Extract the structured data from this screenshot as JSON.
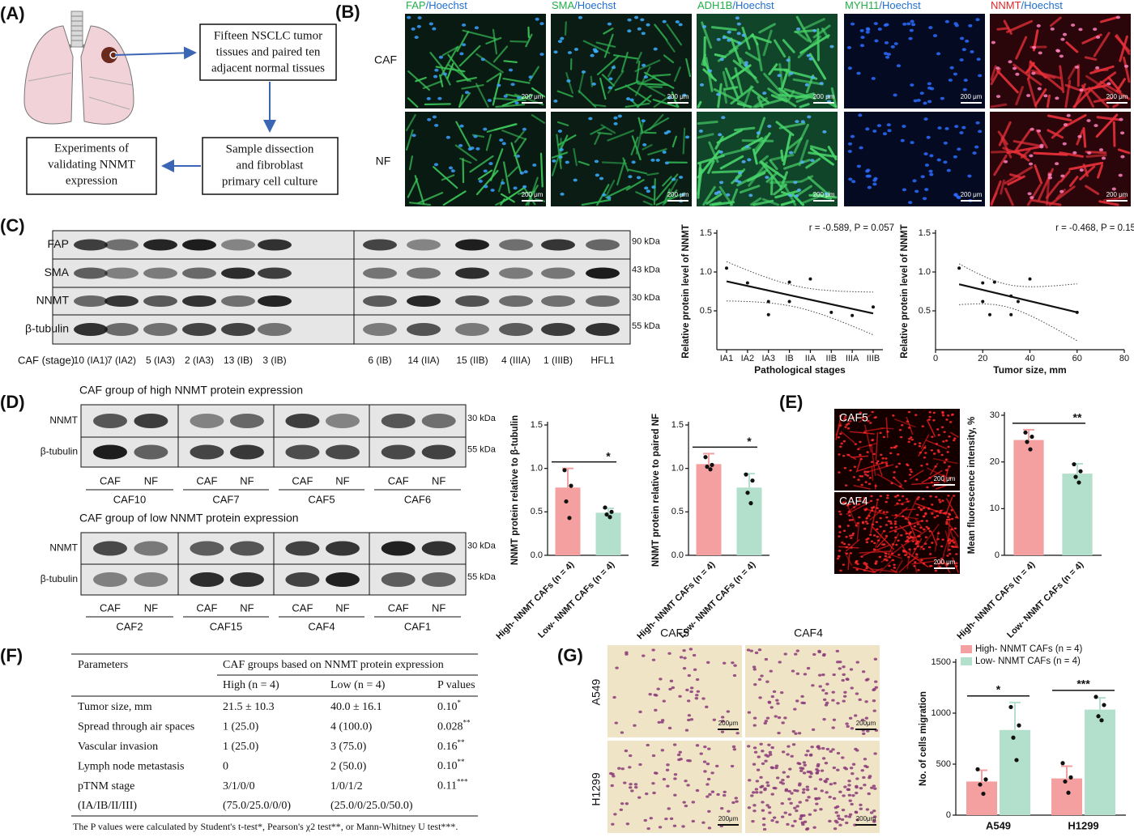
{
  "panel_labels": [
    "(A)",
    "(B)",
    "(C)",
    "(D)",
    "(E)",
    "(F)",
    "(G)"
  ],
  "panel_a": {
    "boxes": [
      [
        "Fifteen NSCLC tumor",
        "tissues and paired ten",
        "adjacent normal tissues"
      ],
      [
        "Sample dissection",
        "and fibroblast",
        "primary cell culture"
      ],
      [
        "Experiments of",
        "validating NNMT",
        "expression"
      ]
    ]
  },
  "panel_b": {
    "columns": [
      {
        "marker": "FAP",
        "counterstain": "/Hoechst",
        "marker_color": "#22b04a",
        "counterstain_color": "#1f6fd0"
      },
      {
        "marker": "SMA",
        "counterstain": "/Hoechst",
        "marker_color": "#22b04a",
        "counterstain_color": "#1f6fd0"
      },
      {
        "marker": "ADH1B",
        "counterstain": "/Hoechst",
        "marker_color": "#22b04a",
        "counterstain_color": "#1f6fd0"
      },
      {
        "marker": "MYH11",
        "counterstain": "/Hoechst",
        "marker_color": "#22b04a",
        "counterstain_color": "#1f6fd0"
      },
      {
        "marker": "NNMT",
        "counterstain": "/Hoechst",
        "marker_color": "#e0262a",
        "counterstain_color": "#1f6fd0"
      }
    ],
    "rows": [
      "CAF",
      "NF"
    ],
    "scale_bar": "200 μm"
  },
  "panel_c": {
    "rows": [
      "FAP",
      "SMA",
      "NNMT",
      "β-tubulin"
    ],
    "kda": [
      "90 kDa",
      "43 kDa",
      "30 kDa",
      "55 kDa"
    ],
    "lane_title": "CAF (stage)",
    "lanes": [
      "10 (IA1)",
      "7 (IA2)",
      "5 (IA3)",
      "2 (IA3)",
      "13 (IB)",
      "3 (IB)",
      "6 (IB)",
      "14 (IIA)",
      "15 (IIB)",
      "4 (IIIA)",
      "1 (IIIB)",
      "HFL1"
    ]
  },
  "panel_d": {
    "groups": [
      {
        "title": "CAF group of high NNMT protein expression",
        "samples": [
          "CAF10",
          "CAF7",
          "CAF5",
          "CAF6"
        ]
      },
      {
        "title": "CAF group of low NNMT protein expression",
        "samples": [
          "CAF2",
          "CAF15",
          "CAF4",
          "CAF1"
        ]
      }
    ],
    "rows": [
      "NNMT",
      "β-tubulin"
    ],
    "kda": [
      "30 kDa",
      "55 kDa"
    ],
    "lanes": [
      "CAF",
      "NF"
    ]
  },
  "panel_e": {
    "images": [
      "CAF5",
      "CAF4"
    ],
    "scale_bar": "200 μm"
  },
  "panel_g": {
    "columns": [
      "CAF5",
      "CAF4"
    ],
    "rows": [
      "A549",
      "H1299"
    ],
    "scale_bar": "200μm"
  },
  "table": {
    "header": [
      "Parameters",
      "CAF groups based on NNMT protein expression"
    ],
    "subheader": [
      "High (n = 4)",
      "Low (n = 4)",
      "P values"
    ],
    "rows": [
      [
        "Tumor size, mm",
        "21.5 ± 10.3",
        "40.0 ± 16.1",
        {
          "text": "0.10",
          "note": "*"
        }
      ],
      [
        "Spread through air spaces",
        "1 (25.0)",
        "4 (100.0)",
        {
          "text": "0.028",
          "note": "**"
        }
      ],
      [
        "Vascular invasion",
        "1 (25.0)",
        "3 (75.0)",
        {
          "text": "0.16",
          "note": "**"
        }
      ],
      [
        "Lymph node metastasis",
        "0",
        "2 (50.0)",
        {
          "text": "0.10",
          "note": "**"
        }
      ],
      [
        "pTNM stage",
        "3/1/0/0",
        "1/0/1/2",
        {
          "text": "0.11",
          "note": "***"
        }
      ],
      [
        "(IA/IB/II/III)",
        "(75.0/25.0/0/0)",
        "(25.0/0/25.0/50.0)",
        null
      ]
    ],
    "footnote": "The P values were calculated by Student's t-test*, Pearson's χ2 test**, or Mann-Whitney U test***."
  },
  "chart_data": [
    {
      "type": "scatter",
      "annotation": "r = -0.589, P = 0.057",
      "ylabel": "Relative protein level of NNMT",
      "xlabel": "Pathological stages",
      "categories": [
        "IA1",
        "IA2",
        "IA3",
        "IB",
        "IIA",
        "IIB",
        "IIIA",
        "IIIB"
      ],
      "x": [
        "IA1",
        "IA2",
        "IA3",
        "IA3",
        "IB",
        "IB",
        "IIA",
        "IIB",
        "IIIA",
        "IIIB"
      ],
      "values": [
        1.05,
        0.86,
        0.62,
        0.45,
        0.87,
        0.62,
        0.91,
        0.48,
        0.44,
        0.55
      ],
      "ylim": [
        0,
        1.5
      ],
      "yticks": [
        0.5,
        {
          "value": 1,
          "label": "1.0"
        },
        1.5
      ],
      "fit": true
    },
    {
      "type": "scatter",
      "annotation": "r = -0.468, P = 0.15",
      "ylabel": "Relative protein level of NNMT",
      "xlabel": "Tumor size, mm",
      "x": [
        10,
        20,
        25,
        20,
        23,
        32,
        32,
        35,
        40,
        60
      ],
      "values": [
        1.05,
        0.86,
        0.87,
        0.62,
        0.45,
        0.69,
        0.45,
        0.62,
        0.91,
        0.48
      ],
      "xlim": [
        0,
        80
      ],
      "xticks": [
        0,
        20,
        40,
        60,
        80
      ],
      "ylim": [
        0,
        1.5
      ],
      "yticks": [
        0.5,
        {
          "value": 1,
          "label": "1.0"
        },
        1.5
      ],
      "fit": true
    },
    {
      "type": "bar",
      "ylabel": "NNMT protein relative to β-tubulin",
      "categories": [
        "High- NNMT CAFs (n = 4)",
        "Low- NNMT CAFs (n = 4)"
      ],
      "colors": [
        "#f4a0a0",
        "#b3e0cc"
      ],
      "values": [
        0.78,
        0.49
      ],
      "errors": [
        0.22,
        0.05
      ],
      "points": [
        [
          0.98,
          0.8,
          0.62,
          0.43
        ],
        [
          0.55,
          0.5,
          0.47,
          0.44
        ]
      ],
      "significance": "*",
      "ylim": [
        0,
        1.5
      ],
      "yticks": [
        {
          "value": 0,
          "label": "0.0"
        },
        0.5,
        {
          "value": 1,
          "label": "1.0"
        },
        1.5
      ]
    },
    {
      "type": "bar",
      "ylabel": "NNMT protein relative to paired NF",
      "categories": [
        "High- NNMT CAFs (n = 4)",
        "Low- NNMT CAFs (n = 4)"
      ],
      "colors": [
        "#f4a0a0",
        "#b3e0cc"
      ],
      "values": [
        1.05,
        0.78
      ],
      "errors": [
        0.12,
        0.16
      ],
      "points": [
        [
          1.13,
          1.04,
          1.02,
          0.99
        ],
        [
          0.93,
          0.86,
          0.72,
          0.6
        ]
      ],
      "significance": "*",
      "ylim": [
        0,
        1.5
      ],
      "yticks": [
        {
          "value": 0,
          "label": "0.0"
        },
        0.5,
        {
          "value": 1,
          "label": "1.0"
        },
        1.5
      ]
    },
    {
      "type": "bar",
      "ylabel": "Mean fluorescence intensity, %",
      "categories": [
        "High- NNMT CAFs (n = 4)",
        "Low- NNMT CAFs (n = 4)"
      ],
      "colors": [
        "#f4a0a0",
        "#b3e0cc"
      ],
      "values": [
        24.7,
        17.5
      ],
      "errors": [
        2.2,
        2.1
      ],
      "points": [
        [
          26.3,
          25.4,
          24.3,
          22.7
        ],
        [
          19.5,
          18,
          16.8,
          15.6
        ]
      ],
      "significance": "**",
      "ylim": [
        0,
        30
      ],
      "yticks": [
        0,
        10,
        20,
        30
      ]
    },
    {
      "type": "grouped_bar",
      "ylabel": "No. of cells migration",
      "categories": [
        "A549",
        "H1299"
      ],
      "series": [
        {
          "name": "High- NNMT CAFs (n = 4)",
          "color": "#f4a0a0",
          "values": [
            330,
            360
          ],
          "errors": [
            110,
            120
          ],
          "points": [
            [
              450,
              350,
              300,
              210
            ],
            [
              510,
              370,
              330,
              220
            ]
          ]
        },
        {
          "name": "Low- NNMT CAFs (n = 4)",
          "color": "#b3e0cc",
          "values": [
            835,
            1035
          ],
          "errors": [
            270,
            115
          ],
          "points": [
            [
              1060,
              880,
              760,
              540
            ],
            [
              1160,
              1080,
              970,
              930
            ]
          ]
        }
      ],
      "significance": [
        "*",
        "***"
      ],
      "ylim": [
        0,
        1500
      ],
      "yticks": [
        0,
        500,
        1000,
        1500
      ],
      "legend": "top-left"
    }
  ]
}
